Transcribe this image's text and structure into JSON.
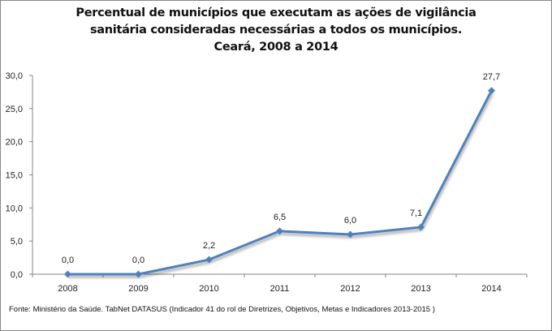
{
  "chart_data": {
    "type": "line",
    "title": [
      "Percentual de municípios que executam as ações de vigilância",
      "sanitária consideradas necessárias a todos os municípios.",
      "Ceará, 2008 a 2014"
    ],
    "xlabel": "",
    "ylabel": "",
    "categories": [
      "2008",
      "2009",
      "2010",
      "2011",
      "2012",
      "2013",
      "2014"
    ],
    "series": [
      {
        "name": "Percentual",
        "values": [
          0.0,
          0.0,
          2.2,
          6.5,
          6.0,
          7.1,
          27.7
        ],
        "labels": [
          "0,0",
          "0,0",
          "2,2",
          "6,5",
          "6,0",
          "7,1",
          "27,7"
        ],
        "color": "#4f81bd"
      }
    ],
    "ylim": [
      0,
      30
    ],
    "yticks": [
      0,
      5,
      10,
      15,
      20,
      25,
      30
    ],
    "ytick_labels": [
      "0,0",
      "5,0",
      "10,0",
      "15,0",
      "20,0",
      "25,0",
      "30,0"
    ],
    "grid": false,
    "legend": "none"
  },
  "source": "Fonte: Ministério da Saúde. TabNet DATASUS (Indicador 41 do rol de Diretrizes, Objetivos, Metas e Indicadores 2013-2015 )"
}
